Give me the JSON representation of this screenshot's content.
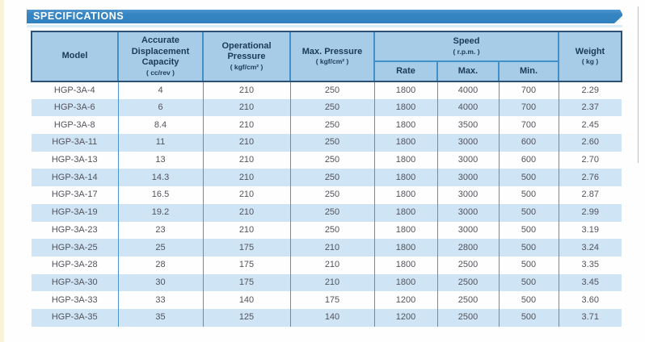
{
  "banner": {
    "title": "SPECIFICATIONS"
  },
  "colors": {
    "banner_blue": "#3585c2",
    "banner_highlight": "#d9edf8",
    "header_bg": "#a6cce8",
    "header_border": "#2d5176",
    "separator_blue": "#4191c8",
    "stripe_row": "#cfe4f4",
    "header_text": "#1c3a59",
    "cell_text": "#53535c",
    "page_edge_cream": "#f8f3d8"
  },
  "table": {
    "headers": {
      "model": {
        "label": "Model"
      },
      "capacity": {
        "label": "Accurate Displacement Capacity",
        "unit": "( cc/rev )"
      },
      "op_pressure": {
        "label": "Operational Pressure",
        "unit": "( kgf/cm² )"
      },
      "max_pressure": {
        "label": "Max. Pressure",
        "unit": "( kgf/cm² )"
      },
      "speed": {
        "label": "Speed",
        "unit": "( r.p.m. )",
        "sub": [
          "Rate",
          "Max.",
          "Min."
        ]
      },
      "weight": {
        "label": "Weight",
        "unit": "( kg )"
      }
    },
    "rows": [
      [
        "HGP-3A-4",
        "4",
        "210",
        "250",
        "1800",
        "4000",
        "700",
        "2.29"
      ],
      [
        "HGP-3A-6",
        "6",
        "210",
        "250",
        "1800",
        "4000",
        "700",
        "2.37"
      ],
      [
        "HGP-3A-8",
        "8.4",
        "210",
        "250",
        "1800",
        "3500",
        "700",
        "2.45"
      ],
      [
        "HGP-3A-11",
        "11",
        "210",
        "250",
        "1800",
        "3000",
        "600",
        "2.60"
      ],
      [
        "HGP-3A-13",
        "13",
        "210",
        "250",
        "1800",
        "3000",
        "600",
        "2.70"
      ],
      [
        "HGP-3A-14",
        "14.3",
        "210",
        "250",
        "1800",
        "3000",
        "500",
        "2.76"
      ],
      [
        "HGP-3A-17",
        "16.5",
        "210",
        "250",
        "1800",
        "3000",
        "500",
        "2.87"
      ],
      [
        "HGP-3A-19",
        "19.2",
        "210",
        "250",
        "1800",
        "3000",
        "500",
        "2.99"
      ],
      [
        "HGP-3A-23",
        "23",
        "210",
        "250",
        "1800",
        "3000",
        "500",
        "3.19"
      ],
      [
        "HGP-3A-25",
        "25",
        "175",
        "210",
        "1800",
        "2800",
        "500",
        "3.24"
      ],
      [
        "HGP-3A-28",
        "28",
        "175",
        "210",
        "1800",
        "2500",
        "500",
        "3.35"
      ],
      [
        "HGP-3A-30",
        "30",
        "175",
        "210",
        "1800",
        "2500",
        "500",
        "3.45"
      ],
      [
        "HGP-3A-33",
        "33",
        "140",
        "175",
        "1200",
        "2500",
        "500",
        "3.60"
      ],
      [
        "HGP-3A-35",
        "35",
        "125",
        "140",
        "1200",
        "2500",
        "500",
        "3.71"
      ]
    ]
  }
}
